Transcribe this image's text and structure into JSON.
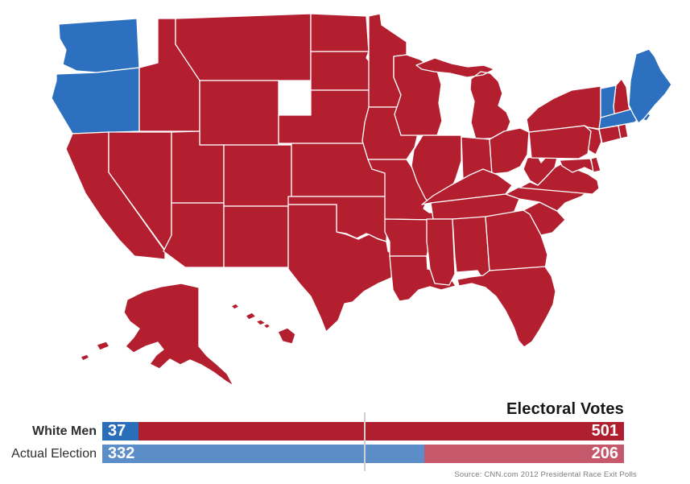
{
  "colors": {
    "republican": "#b41f2f",
    "democrat": "#2d70bf",
    "bar_democrat_dark": "#2a6db8",
    "bar_republican_dark": "#b01f30",
    "bar_democrat_light": "#5b8dc9",
    "bar_republican_light": "#c5586b",
    "state_border": "#ffffff",
    "threshold_line": "#cfcfcf",
    "label_text": "#2e2e2e",
    "title_text": "#161616",
    "source_text": "#7d7d7d"
  },
  "map": {
    "description": "US states choropleth, 2012 presidential race among white men",
    "states": [
      {
        "id": "WA",
        "name": "Washington",
        "party": "democrat"
      },
      {
        "id": "OR",
        "name": "Oregon",
        "party": "democrat"
      },
      {
        "id": "CA",
        "name": "California",
        "party": "republican"
      },
      {
        "id": "NV",
        "name": "Nevada",
        "party": "republican"
      },
      {
        "id": "ID",
        "name": "Idaho",
        "party": "republican"
      },
      {
        "id": "MT",
        "name": "Montana",
        "party": "republican"
      },
      {
        "id": "WY",
        "name": "Wyoming",
        "party": "republican"
      },
      {
        "id": "UT",
        "name": "Utah",
        "party": "republican"
      },
      {
        "id": "CO",
        "name": "Colorado",
        "party": "republican"
      },
      {
        "id": "AZ",
        "name": "Arizona",
        "party": "republican"
      },
      {
        "id": "NM",
        "name": "New Mexico",
        "party": "republican"
      },
      {
        "id": "ND",
        "name": "North Dakota",
        "party": "republican"
      },
      {
        "id": "SD",
        "name": "South Dakota",
        "party": "republican"
      },
      {
        "id": "NE",
        "name": "Nebraska",
        "party": "republican"
      },
      {
        "id": "KS",
        "name": "Kansas",
        "party": "republican"
      },
      {
        "id": "OK",
        "name": "Oklahoma",
        "party": "republican"
      },
      {
        "id": "TX",
        "name": "Texas",
        "party": "republican"
      },
      {
        "id": "MN",
        "name": "Minnesota",
        "party": "republican"
      },
      {
        "id": "IA",
        "name": "Iowa",
        "party": "republican"
      },
      {
        "id": "MO",
        "name": "Missouri",
        "party": "republican"
      },
      {
        "id": "AR",
        "name": "Arkansas",
        "party": "republican"
      },
      {
        "id": "LA",
        "name": "Louisiana",
        "party": "republican"
      },
      {
        "id": "WI",
        "name": "Wisconsin",
        "party": "republican"
      },
      {
        "id": "IL",
        "name": "Illinois",
        "party": "republican"
      },
      {
        "id": "MI",
        "name": "Michigan",
        "party": "republican"
      },
      {
        "id": "IN",
        "name": "Indiana",
        "party": "republican"
      },
      {
        "id": "OH",
        "name": "Ohio",
        "party": "republican"
      },
      {
        "id": "KY",
        "name": "Kentucky",
        "party": "republican"
      },
      {
        "id": "TN",
        "name": "Tennessee",
        "party": "republican"
      },
      {
        "id": "MS",
        "name": "Mississippi",
        "party": "republican"
      },
      {
        "id": "AL",
        "name": "Alabama",
        "party": "republican"
      },
      {
        "id": "GA",
        "name": "Georgia",
        "party": "republican"
      },
      {
        "id": "FL",
        "name": "Florida",
        "party": "republican"
      },
      {
        "id": "SC",
        "name": "South Carolina",
        "party": "republican"
      },
      {
        "id": "NC",
        "name": "North Carolina",
        "party": "republican"
      },
      {
        "id": "VA",
        "name": "Virginia",
        "party": "republican"
      },
      {
        "id": "WV",
        "name": "West Virginia",
        "party": "republican"
      },
      {
        "id": "MD",
        "name": "Maryland",
        "party": "republican"
      },
      {
        "id": "DE",
        "name": "Delaware",
        "party": "republican"
      },
      {
        "id": "NJ",
        "name": "New Jersey",
        "party": "republican"
      },
      {
        "id": "PA",
        "name": "Pennsylvania",
        "party": "republican"
      },
      {
        "id": "NY",
        "name": "New York",
        "party": "republican"
      },
      {
        "id": "CT",
        "name": "Connecticut",
        "party": "republican"
      },
      {
        "id": "RI",
        "name": "Rhode Island",
        "party": "republican"
      },
      {
        "id": "NH",
        "name": "New Hampshire",
        "party": "republican"
      },
      {
        "id": "VT",
        "name": "Vermont",
        "party": "democrat"
      },
      {
        "id": "MA",
        "name": "Massachusetts",
        "party": "democrat"
      },
      {
        "id": "ME",
        "name": "Maine",
        "party": "democrat"
      },
      {
        "id": "AK",
        "name": "Alaska",
        "party": "republican"
      },
      {
        "id": "HI",
        "name": "Hawaii",
        "party": "republican"
      }
    ]
  },
  "chart_data": {
    "type": "bar",
    "title": "Electoral Votes",
    "categories": [
      "White Men",
      "Actual Election"
    ],
    "series": [
      {
        "name": "Democratic electoral votes",
        "values": [
          37,
          332
        ]
      },
      {
        "name": "Republican electoral votes",
        "values": [
          501,
          206
        ]
      }
    ],
    "total_electoral_votes": 538,
    "threshold": 270,
    "xlim": [
      0,
      538
    ],
    "grid": false,
    "legend": "none",
    "source": "Source: CNN.com 2012 Presidental Race Exit Polls"
  }
}
